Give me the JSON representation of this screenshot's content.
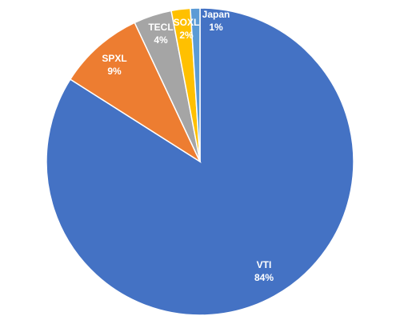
{
  "chart_data": {
    "type": "pie",
    "categories": [
      "VTI",
      "SPXL",
      "TECL",
      "SOXL",
      "Japan"
    ],
    "values": [
      84,
      9,
      4,
      2,
      1
    ],
    "value_labels": [
      "84%",
      "9%",
      "4%",
      "2%",
      "1%"
    ],
    "colors": [
      "#4472c4",
      "#ed7d31",
      "#a5a5a5",
      "#ffc000",
      "#5b9bd5"
    ]
  }
}
